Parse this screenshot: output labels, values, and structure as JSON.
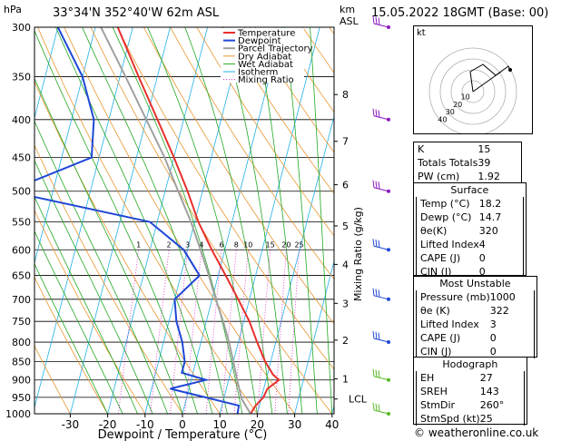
{
  "header": {
    "location": "33°34'N  352°40'W  62m  ASL",
    "datetime": "15.05.2022  18GMT  (Base: 00)",
    "hpa_unit": "hPa",
    "km_unit": "km",
    "asl_unit": "ASL"
  },
  "footer": "© weatheronline.co.uk",
  "chart_data": {
    "type": "line",
    "xlabel": "Dewpoint / Temperature (°C)",
    "ylabel_right": "Mixing Ratio (g/kg)",
    "pressure_levels": [
      300,
      350,
      400,
      450,
      500,
      550,
      600,
      650,
      700,
      750,
      800,
      850,
      900,
      950,
      1000
    ],
    "x_ticks": [
      -30,
      -20,
      -10,
      0,
      10,
      20,
      30,
      40
    ],
    "km_ticks": [
      {
        "label": "8",
        "p": 370
      },
      {
        "label": "7",
        "p": 428
      },
      {
        "label": "6",
        "p": 490
      },
      {
        "label": "5",
        "p": 557
      },
      {
        "label": "4",
        "p": 628
      },
      {
        "label": "3",
        "p": 709
      },
      {
        "label": "2",
        "p": 795
      },
      {
        "label": "1",
        "p": 897
      },
      {
        "label": "LCL",
        "p": 955
      }
    ],
    "mixing_ratio_labels": [
      "1",
      "2",
      "3",
      "4",
      "6",
      "8",
      "10",
      "15",
      "20",
      "25"
    ],
    "mixing_ratio_values": [
      1,
      2,
      3,
      4,
      6,
      8,
      10,
      15,
      20,
      25
    ],
    "legend": [
      "Temperature",
      "Dewpoint",
      "Parcel Trajectory",
      "Dry Adiabat",
      "Wet Adiabat",
      "Isotherm",
      "Mixing Ratio"
    ],
    "colors": {
      "temperature": "#e8302c",
      "dewpoint": "#1f47d6",
      "parcel": "#a0a0a0",
      "dry_adiabat": "#e89630",
      "wet_adiabat": "#22a822",
      "isotherm": "#22b0e8",
      "mixing_ratio": "#e020c8"
    },
    "series": [
      {
        "name": "Temperature",
        "points": [
          {
            "p": 1000,
            "t": 18.2
          },
          {
            "p": 975,
            "t": 19.0
          },
          {
            "p": 950,
            "t": 20.5
          },
          {
            "p": 925,
            "t": 21.0
          },
          {
            "p": 900,
            "t": 23.5
          },
          {
            "p": 885,
            "t": 21.5
          },
          {
            "p": 850,
            "t": 18.5
          },
          {
            "p": 800,
            "t": 15.0
          },
          {
            "p": 750,
            "t": 11.5
          },
          {
            "p": 700,
            "t": 7.0
          },
          {
            "p": 650,
            "t": 2.0
          },
          {
            "p": 600,
            "t": -3.5
          },
          {
            "p": 550,
            "t": -9.0
          },
          {
            "p": 500,
            "t": -14.0
          },
          {
            "p": 450,
            "t": -20.0
          },
          {
            "p": 400,
            "t": -27.0
          },
          {
            "p": 350,
            "t": -35.0
          },
          {
            "p": 300,
            "t": -44.0
          }
        ]
      },
      {
        "name": "Dewpoint",
        "points": [
          {
            "p": 1000,
            "t": 14.7
          },
          {
            "p": 975,
            "t": 14.5
          },
          {
            "p": 950,
            "t": 5.0
          },
          {
            "p": 925,
            "t": -5.0
          },
          {
            "p": 900,
            "t": 4.0
          },
          {
            "p": 880,
            "t": -3.0
          },
          {
            "p": 850,
            "t": -3.0
          },
          {
            "p": 800,
            "t": -5.0
          },
          {
            "p": 750,
            "t": -8.0
          },
          {
            "p": 700,
            "t": -10.0
          },
          {
            "p": 680,
            "t": -8.0
          },
          {
            "p": 650,
            "t": -5.0
          },
          {
            "p": 600,
            "t": -11.0
          },
          {
            "p": 550,
            "t": -22.0
          },
          {
            "p": 500,
            "t": -62.0
          },
          {
            "p": 450,
            "t": -42.0
          },
          {
            "p": 400,
            "t": -44.0
          },
          {
            "p": 350,
            "t": -50.0
          },
          {
            "p": 300,
            "t": -60.0
          }
        ]
      },
      {
        "name": "Parcel Trajectory",
        "points": [
          {
            "p": 1000,
            "t": 18.2
          },
          {
            "p": 955,
            "t": 14.8
          },
          {
            "p": 900,
            "t": 12.3
          },
          {
            "p": 850,
            "t": 10.0
          },
          {
            "p": 800,
            "t": 7.5
          },
          {
            "p": 750,
            "t": 4.5
          },
          {
            "p": 700,
            "t": 1.0
          },
          {
            "p": 650,
            "t": -2.5
          },
          {
            "p": 600,
            "t": -6.5
          },
          {
            "p": 550,
            "t": -11.0
          },
          {
            "p": 500,
            "t": -16.5
          },
          {
            "p": 450,
            "t": -22.5
          },
          {
            "p": 400,
            "t": -30.0
          },
          {
            "p": 350,
            "t": -38.5
          },
          {
            "p": 300,
            "t": -48.5
          }
        ]
      }
    ],
    "wind_barbs_p": [
      300,
      400,
      500,
      600,
      700,
      800,
      900,
      1000
    ]
  },
  "hodograph": {
    "unit_label": "kt",
    "ring_labels": [
      "10",
      "20",
      "30",
      "40"
    ]
  },
  "indices": {
    "top": [
      {
        "label": "K",
        "value": "15"
      },
      {
        "label": "Totals Totals",
        "value": "39"
      },
      {
        "label": "PW (cm)",
        "value": "1.92"
      }
    ],
    "surface": {
      "title": "Surface",
      "rows": [
        {
          "label": "Temp (°C)",
          "value": "18.2"
        },
        {
          "label": "Dewp (°C)",
          "value": "14.7"
        },
        {
          "label": "θe(K)",
          "value": "320"
        },
        {
          "label": "Lifted Index",
          "value": "4"
        },
        {
          "label": "CAPE (J)",
          "value": "0"
        },
        {
          "label": "CIN (J)",
          "value": "0"
        }
      ]
    },
    "most_unstable": {
      "title": "Most Unstable",
      "rows": [
        {
          "label": "Pressure (mb)",
          "value": "1000"
        },
        {
          "label": "θe (K)",
          "value": "322"
        },
        {
          "label": "Lifted Index",
          "value": "3"
        },
        {
          "label": "CAPE (J)",
          "value": "0"
        },
        {
          "label": "CIN (J)",
          "value": "0"
        }
      ]
    },
    "hodograph_box": {
      "title": "Hodograph",
      "rows": [
        {
          "label": "EH",
          "value": "27"
        },
        {
          "label": "SREH",
          "value": "143"
        },
        {
          "label": "StmDir",
          "value": "260°"
        },
        {
          "label": "StmSpd (kt)",
          "value": "25"
        }
      ]
    }
  }
}
